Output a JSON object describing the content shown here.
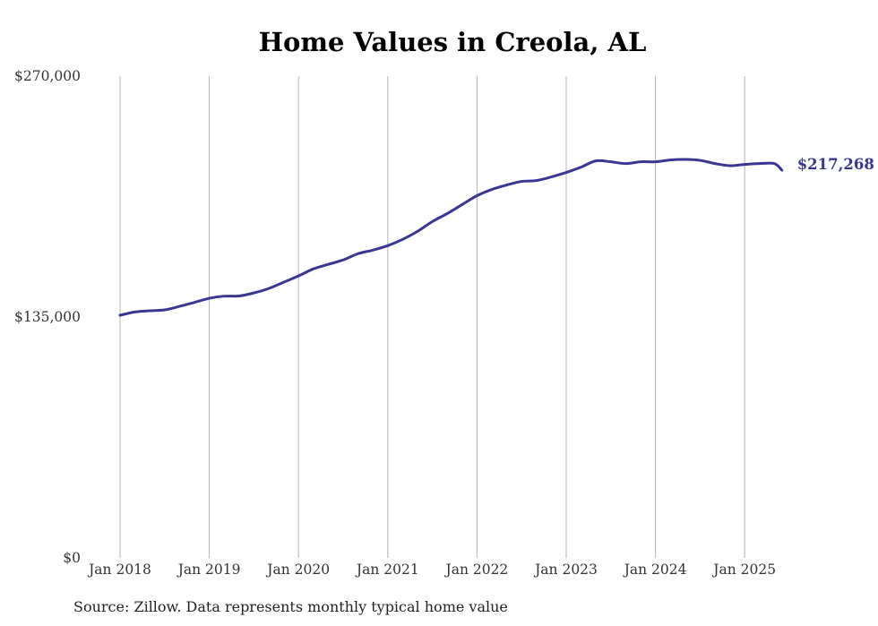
{
  "title": "Home Values in Creola, AL",
  "source": "Source: Zillow. Data represents monthly typical home value",
  "chart_data": {
    "type": "line",
    "title": "Home Values in Creola, AL",
    "xlabel": "",
    "ylabel": "",
    "x_ticks": [
      "Jan 2018",
      "Jan 2019",
      "Jan 2020",
      "Jan 2021",
      "Jan 2022",
      "Jan 2023",
      "Jan 2024",
      "Jan 2025"
    ],
    "y_ticks": [
      "$0",
      "$135,000",
      "$270,000"
    ],
    "y_tick_values": [
      0,
      135000,
      270000
    ],
    "ylim": [
      0,
      270000
    ],
    "xlim": [
      "2018-01",
      "2025-06"
    ],
    "grid": "vertical",
    "line_color": "#3a3693",
    "series": [
      {
        "name": "",
        "x": [
          "2018-01",
          "2018-03",
          "2018-05",
          "2018-07",
          "2018-09",
          "2018-11",
          "2019-01",
          "2019-03",
          "2019-05",
          "2019-07",
          "2019-09",
          "2019-11",
          "2020-01",
          "2020-03",
          "2020-05",
          "2020-07",
          "2020-09",
          "2020-11",
          "2021-01",
          "2021-03",
          "2021-05",
          "2021-07",
          "2021-09",
          "2021-11",
          "2022-01",
          "2022-03",
          "2022-05",
          "2022-07",
          "2022-09",
          "2022-11",
          "2023-01",
          "2023-03",
          "2023-05",
          "2023-07",
          "2023-09",
          "2023-11",
          "2024-01",
          "2024-03",
          "2024-05",
          "2024-07",
          "2024-09",
          "2024-11",
          "2025-01",
          "2025-03",
          "2025-05",
          "2025-06"
        ],
        "values": [
          136000,
          137800,
          138500,
          139000,
          141000,
          143200,
          145500,
          146700,
          146800,
          148500,
          151000,
          154500,
          158000,
          162000,
          164500,
          167000,
          170500,
          172500,
          175000,
          178500,
          183000,
          188500,
          193000,
          198000,
          203000,
          206500,
          209000,
          211000,
          211500,
          213500,
          216000,
          219000,
          222500,
          222000,
          221000,
          222000,
          222000,
          223000,
          223300,
          222800,
          221000,
          219800,
          220500,
          221000,
          221000,
          217268
        ]
      }
    ],
    "end_label": "$217,268"
  }
}
